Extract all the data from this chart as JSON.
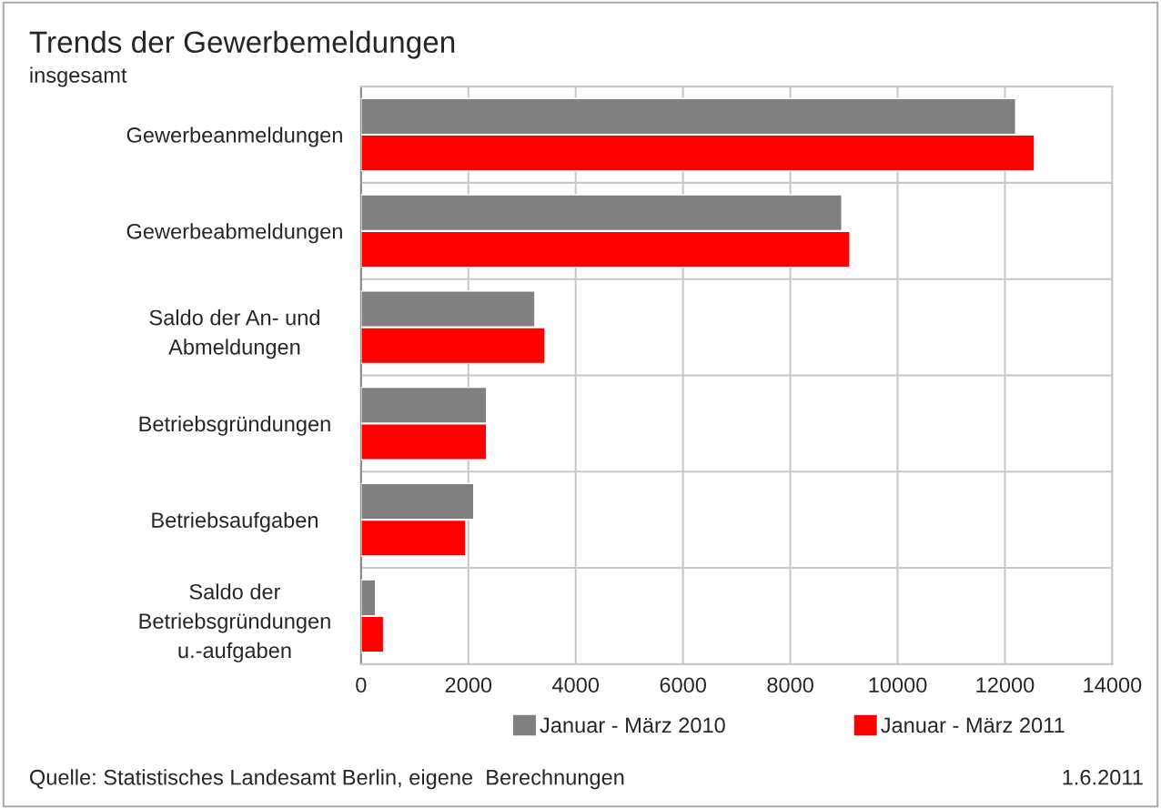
{
  "chart_data": {
    "type": "bar",
    "orientation": "horizontal",
    "title": "Trends der Gewerbemeldungen",
    "subtitle": "insgesamt",
    "categories": [
      "Gewerbeanmeldungen",
      "Gewerbeabmeldungen",
      "Saldo der An- und\nAbmeldungen",
      "Betriebsgründungen",
      "Betriebsaufgaben",
      "Saldo der\nBetriebsgründungen\nu.-aufgaben"
    ],
    "series": [
      {
        "name": "Januar - März 2010",
        "color": "#808080",
        "values": [
          12200,
          8960,
          3240,
          2340,
          2100,
          270
        ]
      },
      {
        "name": "Januar - März 2011",
        "color": "#ff0000",
        "values": [
          12550,
          9110,
          3430,
          2340,
          1950,
          420
        ]
      }
    ],
    "xlim": [
      0,
      14000
    ],
    "xticks": [
      0,
      2000,
      4000,
      6000,
      8000,
      10000,
      12000,
      14000
    ],
    "grid": true,
    "legend": "bottom",
    "annotations": [
      "Quelle: Statistisches Landesamt Berlin, eigene  Berechnungen",
      "1.6.2011"
    ]
  }
}
